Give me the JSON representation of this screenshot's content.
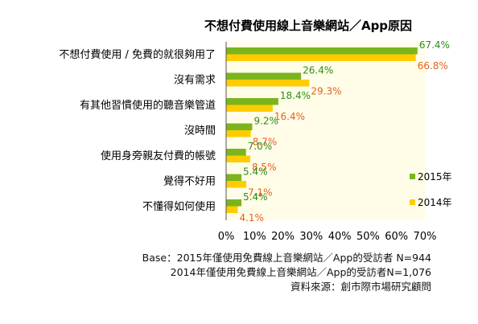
{
  "chart_data": {
    "type": "bar",
    "orientation": "horizontal",
    "title": "不想付費使用線上音樂網站／App原因",
    "categories": [
      "不想付費使用 / 免費的就很夠用了",
      "沒有需求",
      "有其他習慣使用的聽音樂管道",
      "沒時間",
      "使用身旁親友付費的帳號",
      "覺得不好用",
      "不懂得如何使用"
    ],
    "series": [
      {
        "name": "2015年",
        "color": "#7ab51d",
        "label_color": "#2e8b1d",
        "values": [
          67.4,
          26.4,
          18.4,
          9.2,
          7.0,
          5.4,
          5.4
        ],
        "labels": [
          "67.4%",
          "26.4%",
          "18.4%",
          "9.2%",
          "7.0%",
          "5.4%",
          "5.4%"
        ]
      },
      {
        "name": "2014年",
        "color": "#ffcc00",
        "label_color": "#e8601c",
        "values": [
          66.8,
          29.3,
          16.4,
          8.7,
          8.5,
          7.1,
          4.1
        ],
        "labels": [
          "66.8%",
          "29.3%",
          "16.4%",
          "8.7%",
          "8.5%",
          "7.1%",
          "4.1%"
        ]
      }
    ],
    "xlim": [
      0,
      70
    ],
    "xticks": [
      "0%",
      "10%",
      "20%",
      "30%",
      "40%",
      "50%",
      "60%",
      "70%"
    ],
    "grid": false,
    "legend_position": "bottom-right",
    "plot_background": "#fffde8"
  },
  "footnotes": {
    "base_2015": "Base：2015年僅使用免費線上音樂網站／App的受訪者 N=944",
    "base_2014": "2014年僅使用免費線上音樂網站／App的受訪者N=1,076",
    "source": "資料來源：創市際市場研究顧問"
  }
}
